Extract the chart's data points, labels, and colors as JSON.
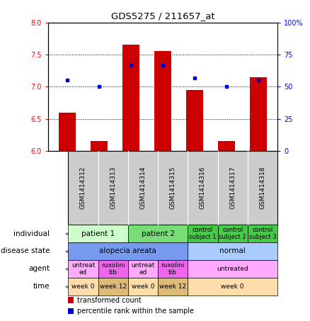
{
  "title": "GDS5275 / 211657_at",
  "samples": [
    "GSM1414312",
    "GSM1414313",
    "GSM1414314",
    "GSM1414315",
    "GSM1414316",
    "GSM1414317",
    "GSM1414318"
  ],
  "transformed_count": [
    6.6,
    6.15,
    7.65,
    7.55,
    6.95,
    6.15,
    7.15
  ],
  "percentile_rank": [
    55,
    50,
    67,
    67,
    57,
    50,
    55
  ],
  "ylim_left": [
    6.0,
    8.0
  ],
  "ylim_right": [
    0,
    100
  ],
  "yticks_left": [
    6.0,
    6.5,
    7.0,
    7.5,
    8.0
  ],
  "yticks_right": [
    0,
    25,
    50,
    75,
    100
  ],
  "bar_color": "#cc0000",
  "dot_color": "#0000cc",
  "bar_bottom": 6.0,
  "annotation_rows": [
    {
      "label": "individual",
      "cells": [
        {
          "text": "patient 1",
          "span": 2,
          "color": "#ccffcc",
          "fontsize": 7.5
        },
        {
          "text": "patient 2",
          "span": 2,
          "color": "#77dd77",
          "fontsize": 7.5
        },
        {
          "text": "control\nsubject 1",
          "span": 1,
          "color": "#44cc44",
          "fontsize": 6
        },
        {
          "text": "control\nsubject 2",
          "span": 1,
          "color": "#44cc44",
          "fontsize": 6
        },
        {
          "text": "control\nsubject 3",
          "span": 1,
          "color": "#44cc44",
          "fontsize": 6
        }
      ]
    },
    {
      "label": "disease state",
      "cells": [
        {
          "text": "alopecia areata",
          "span": 4,
          "color": "#7799ee",
          "fontsize": 7.5
        },
        {
          "text": "normal",
          "span": 3,
          "color": "#aaccff",
          "fontsize": 7.5
        }
      ]
    },
    {
      "label": "agent",
      "cells": [
        {
          "text": "untreat\ned",
          "span": 1,
          "color": "#ffaaff",
          "fontsize": 6.5
        },
        {
          "text": "ruxolini\ntib",
          "span": 1,
          "color": "#ee66ee",
          "fontsize": 6.5
        },
        {
          "text": "untreat\ned",
          "span": 1,
          "color": "#ffaaff",
          "fontsize": 6.5
        },
        {
          "text": "ruxolini\ntib",
          "span": 1,
          "color": "#ee66ee",
          "fontsize": 6.5
        },
        {
          "text": "untreated",
          "span": 3,
          "color": "#ffaaff",
          "fontsize": 6.5
        }
      ]
    },
    {
      "label": "time",
      "cells": [
        {
          "text": "week 0",
          "span": 1,
          "color": "#ffddaa",
          "fontsize": 6.5
        },
        {
          "text": "week 12",
          "span": 1,
          "color": "#ddbb77",
          "fontsize": 6.5
        },
        {
          "text": "week 0",
          "span": 1,
          "color": "#ffddaa",
          "fontsize": 6.5
        },
        {
          "text": "week 12",
          "span": 1,
          "color": "#ddbb77",
          "fontsize": 6.5
        },
        {
          "text": "week 0",
          "span": 3,
          "color": "#ffddaa",
          "fontsize": 6.5
        }
      ]
    }
  ],
  "legend_items": [
    {
      "color": "#cc0000",
      "label": "transformed count"
    },
    {
      "color": "#0000cc",
      "label": "percentile rank within the sample"
    }
  ],
  "sample_label_bg": "#cccccc",
  "sample_label_fontsize": 6.5
}
